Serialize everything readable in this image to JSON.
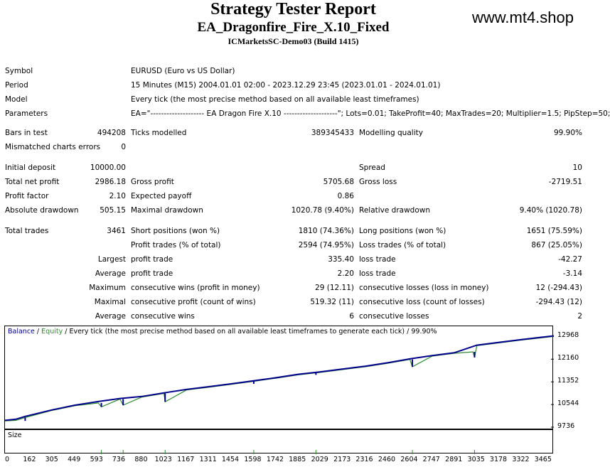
{
  "header": {
    "title": "Strategy Tester Report",
    "ea_name": "EA_Dragonfire_Fire_X.10_Fixed",
    "server": "ICMarketsSC-Demo03 (Build 1415)",
    "brand": "www.mt4.shop"
  },
  "info": {
    "symbol_label": "Symbol",
    "symbol_value": "EURUSD (Euro vs US Dollar)",
    "period_label": "Period",
    "period_value": "15 Minutes (M15) 2004.01.01 02:00 - 2023.12.29 23:45 (2023.01.01 - 2024.01.01)",
    "model_label": "Model",
    "model_value": "Every tick (the most precise method based on all available least timeframes)",
    "params_label": "Parameters",
    "params_value": "EA=\"-------------------- EA Dragon Fire X.10 --------------------\"; Lots=0.01; TakeProfit=40; MaxTrades=20; Multiplier=1.5; PipStep=50;"
  },
  "stats": {
    "bars_label": "Bars in test",
    "bars_value": "494208",
    "ticks_label": "Ticks modelled",
    "ticks_value": "389345433",
    "quality_label": "Modelling quality",
    "quality_value": "99.90%",
    "mismatch_label": "Mismatched charts errors",
    "mismatch_value": "0",
    "deposit_label": "Initial deposit",
    "deposit_value": "10000.00",
    "spread_label": "Spread",
    "spread_value": "10",
    "netprofit_label": "Total net profit",
    "netprofit_value": "2986.18",
    "grossprofit_label": "Gross profit",
    "grossprofit_value": "5705.68",
    "grossloss_label": "Gross loss",
    "grossloss_value": "-2719.51",
    "pf_label": "Profit factor",
    "pf_value": "2.10",
    "payoff_label": "Expected payoff",
    "payoff_value": "0.86",
    "absdd_label": "Absolute drawdown",
    "absdd_value": "505.15",
    "maxdd_label": "Maximal drawdown",
    "maxdd_value": "1020.78 (9.40%)",
    "reldd_label": "Relative drawdown",
    "reldd_value": "9.40% (1020.78)",
    "trades_label": "Total trades",
    "trades_value": "3461",
    "short_label": "Short positions (won %)",
    "short_value": "1810 (74.36%)",
    "long_label": "Long positions (won %)",
    "long_value": "1651 (75.59%)",
    "ptrades_label": "Profit trades (% of total)",
    "ptrades_value": "2594 (74.95%)",
    "ltrades_label": "Loss trades (% of total)",
    "ltrades_value": "867 (25.05%)",
    "largest_label": "Largest",
    "largest_p_label": "profit trade",
    "largest_p_value": "335.40",
    "largest_l_label": "loss trade",
    "largest_l_value": "-42.27",
    "average_label": "Average",
    "average_p_label": "profit trade",
    "average_p_value": "2.20",
    "average_l_label": "loss trade",
    "average_l_value": "-3.14",
    "maximum_label": "Maximum",
    "max_w_label": "consecutive wins (profit in money)",
    "max_w_value": "29 (12.11)",
    "max_l_label": "consecutive losses (loss in money)",
    "max_l_value": "12 (-294.43)",
    "maximal_label": "Maximal",
    "maxl_p_label": "consecutive profit (count of wins)",
    "maxl_p_value": "519.32 (11)",
    "maxl_l_label": "consecutive loss (count of losses)",
    "maxl_l_value": "-294.43 (12)",
    "average2_label": "Average",
    "avg_w_label": "consecutive wins",
    "avg_w_value": "6",
    "avg_l_label": "consecutive losses",
    "avg_l_value": "2"
  },
  "chart_data": {
    "type": "line",
    "legend": {
      "balance": "Balance",
      "separator": "/",
      "equity": "Equity",
      "note": "/ Every tick (the most precise method based on all available least timeframes to generate each tick) / 99.90%"
    },
    "colors": {
      "balance": "#00008b",
      "equity": "#2e8b2e",
      "axis": "#000000"
    },
    "y_ticks": [
      "12968",
      "12160",
      "11352",
      "10544",
      "9736"
    ],
    "x_ticks": [
      "0",
      "162",
      "305",
      "449",
      "593",
      "736",
      "880",
      "1023",
      "1167",
      "1311",
      "1454",
      "1598",
      "1742",
      "1885",
      "2029",
      "2173",
      "2316",
      "2460",
      "2604",
      "2747",
      "2891",
      "3035",
      "3178",
      "3322",
      "3465"
    ],
    "xlim": [
      0,
      3530
    ],
    "ylim": [
      9736,
      13130
    ],
    "size_label": "Size",
    "series": [
      {
        "name": "Balance",
        "points": [
          [
            0,
            9980
          ],
          [
            70,
            10020
          ],
          [
            130,
            10120
          ],
          [
            300,
            10350
          ],
          [
            450,
            10520
          ],
          [
            600,
            10650
          ],
          [
            740,
            10760
          ],
          [
            880,
            10830
          ],
          [
            1023,
            10960
          ],
          [
            1167,
            11080
          ],
          [
            1311,
            11180
          ],
          [
            1454,
            11280
          ],
          [
            1598,
            11390
          ],
          [
            1742,
            11500
          ],
          [
            1885,
            11620
          ],
          [
            2029,
            11710
          ],
          [
            2173,
            11810
          ],
          [
            2316,
            11910
          ],
          [
            2460,
            12030
          ],
          [
            2604,
            12170
          ],
          [
            2747,
            12290
          ],
          [
            2891,
            12390
          ],
          [
            3035,
            12660
          ],
          [
            3178,
            12760
          ],
          [
            3322,
            12860
          ],
          [
            3465,
            12950
          ],
          [
            3530,
            12990
          ]
        ]
      },
      {
        "name": "Equity",
        "points": [
          [
            0,
            9960
          ],
          [
            70,
            9980
          ],
          [
            130,
            10080
          ],
          [
            300,
            10330
          ],
          [
            450,
            10500
          ],
          [
            600,
            10600
          ],
          [
            620,
            10460
          ],
          [
            740,
            10740
          ],
          [
            760,
            10520
          ],
          [
            880,
            10810
          ],
          [
            1023,
            10940
          ],
          [
            1030,
            10640
          ],
          [
            1167,
            11060
          ],
          [
            1311,
            11160
          ],
          [
            1454,
            11260
          ],
          [
            1598,
            11370
          ],
          [
            1742,
            11480
          ],
          [
            1885,
            11600
          ],
          [
            2029,
            11690
          ],
          [
            2173,
            11790
          ],
          [
            2316,
            11890
          ],
          [
            2460,
            12010
          ],
          [
            2604,
            12150
          ],
          [
            2620,
            11890
          ],
          [
            2747,
            12270
          ],
          [
            2891,
            12370
          ],
          [
            3010,
            12420
          ],
          [
            3020,
            12220
          ],
          [
            3035,
            12640
          ],
          [
            3178,
            12740
          ],
          [
            3322,
            12840
          ],
          [
            3465,
            12930
          ],
          [
            3530,
            12970
          ]
        ]
      }
    ],
    "drawdown_spikes": [
      [
        130,
        10080,
        9960
      ],
      [
        620,
        10600,
        10460
      ],
      [
        760,
        10740,
        10520
      ],
      [
        1030,
        10940,
        10640
      ],
      [
        1600,
        11370,
        11280
      ],
      [
        2000,
        11690,
        11600
      ],
      [
        2620,
        12150,
        11890
      ],
      [
        3020,
        12420,
        12220
      ]
    ],
    "size_spikes": [
      620,
      760,
      1030,
      1600,
      2000,
      2620,
      3020
    ]
  }
}
